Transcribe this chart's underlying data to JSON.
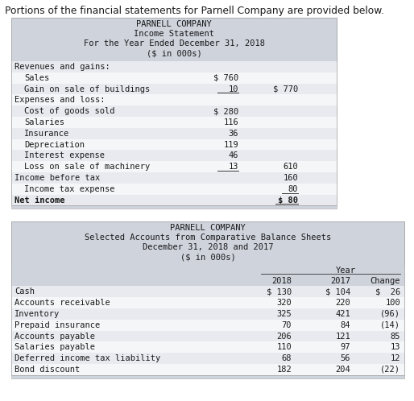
{
  "title_text": "Portions of the financial statements for Parnell Company are provided below.",
  "income_header": [
    "PARNELL COMPANY",
    "Income Statement",
    "For the Year Ended December 31, 2018",
    "($ in 000s)"
  ],
  "income_rows": [
    {
      "label": "Revenues and gains:",
      "col1": "",
      "col2": "",
      "bold": false,
      "indent": 0
    },
    {
      "label": "Sales",
      "col1": "$ 760",
      "col2": "",
      "bold": false,
      "indent": 1
    },
    {
      "label": "Gain on sale of buildings",
      "col1": "10",
      "col2": "$ 770",
      "bold": false,
      "indent": 1,
      "underline_col1": true
    },
    {
      "label": "Expenses and loss:",
      "col1": "",
      "col2": "",
      "bold": false,
      "indent": 0
    },
    {
      "label": "Cost of goods sold",
      "col1": "$ 280",
      "col2": "",
      "bold": false,
      "indent": 1
    },
    {
      "label": "Salaries",
      "col1": "116",
      "col2": "",
      "bold": false,
      "indent": 1
    },
    {
      "label": "Insurance",
      "col1": "36",
      "col2": "",
      "bold": false,
      "indent": 1
    },
    {
      "label": "Depreciation",
      "col1": "119",
      "col2": "",
      "bold": false,
      "indent": 1
    },
    {
      "label": "Interest expense",
      "col1": "46",
      "col2": "",
      "bold": false,
      "indent": 1
    },
    {
      "label": "Loss on sale of machinery",
      "col1": "13",
      "col2": "610",
      "bold": false,
      "indent": 1,
      "underline_col1": true
    },
    {
      "label": "Income before tax",
      "col1": "",
      "col2": "160",
      "bold": false,
      "indent": 0
    },
    {
      "label": "Income tax expense",
      "col1": "",
      "col2": "80",
      "bold": false,
      "indent": 1,
      "underline_col2": true
    },
    {
      "label": "Net income",
      "col1": "",
      "col2": "$ 80",
      "bold": true,
      "indent": 0,
      "double_underline": true
    }
  ],
  "balance_header": [
    "PARNELL COMPANY",
    "Selected Accounts from Comparative Balance Sheets",
    "December 31, 2018 and 2017",
    "($ in 000s)"
  ],
  "balance_rows": [
    {
      "label": "Cash",
      "c2018": "$ 130",
      "c2017": "$ 104",
      "change": "$  26"
    },
    {
      "label": "Accounts receivable",
      "c2018": "320",
      "c2017": "220",
      "change": "100"
    },
    {
      "label": "Inventory",
      "c2018": "325",
      "c2017": "421",
      "change": "(96)"
    },
    {
      "label": "Prepaid insurance",
      "c2018": "70",
      "c2017": "84",
      "change": "(14)"
    },
    {
      "label": "Accounts payable",
      "c2018": "206",
      "c2017": "121",
      "change": "85"
    },
    {
      "label": "Salaries payable",
      "c2018": "110",
      "c2017": "97",
      "change": "13"
    },
    {
      "label": "Deferred income tax liability",
      "c2018": "68",
      "c2017": "56",
      "change": "12"
    },
    {
      "label": "Bond discount",
      "c2018": "182",
      "c2017": "204",
      "change": "(22)"
    }
  ],
  "header_bg": "#ced3dc",
  "row_bg_even": "#e8eaef",
  "row_bg_odd": "#f5f6f8",
  "border_color": "#aaaaaa",
  "font_color": "#1a1a1a",
  "title_fontsize": 8.8,
  "header_fontsize": 7.5,
  "body_fontsize": 7.5,
  "mono_font": "monospace"
}
